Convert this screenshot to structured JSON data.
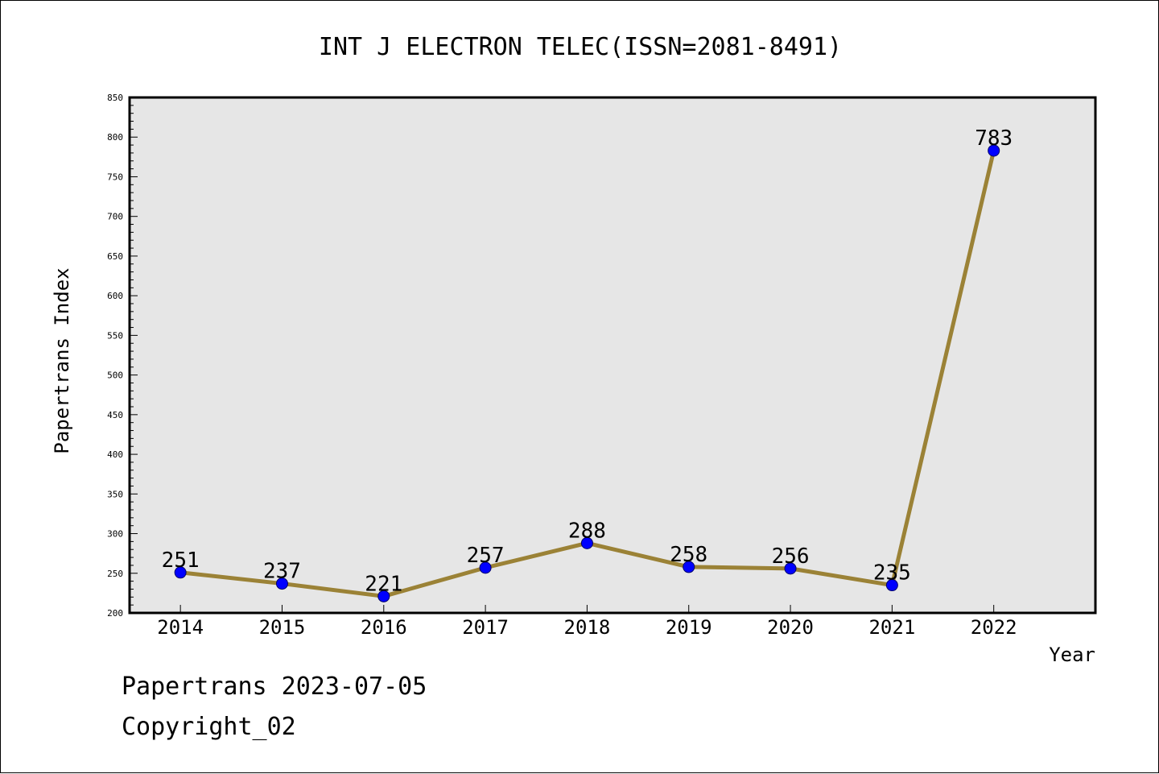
{
  "chart_data": {
    "type": "line",
    "title": "INT J ELECTRON TELEC(ISSN=2081-8491)",
    "xlabel": "Year",
    "ylabel": "Papertrans Index",
    "categories": [
      "2014",
      "2015",
      "2016",
      "2017",
      "2018",
      "2019",
      "2020",
      "2021",
      "2022"
    ],
    "values": [
      251,
      237,
      221,
      257,
      288,
      258,
      256,
      235,
      783
    ],
    "data_labels": [
      "251",
      "237",
      "221",
      "257",
      "288",
      "258",
      "256",
      "235",
      "783"
    ],
    "ylim": [
      200,
      850
    ],
    "yticks": [
      "200",
      "250",
      "300",
      "350",
      "400",
      "450",
      "500",
      "550",
      "600",
      "650",
      "700",
      "750",
      "800",
      "850"
    ],
    "grid": false,
    "colors": {
      "line": "#9b8236",
      "marker": "#0000ff",
      "plot_background": "#e6e6e6"
    }
  },
  "footer": {
    "date_line": "Papertrans 2023-07-05",
    "copyright": "Copyright_02"
  }
}
